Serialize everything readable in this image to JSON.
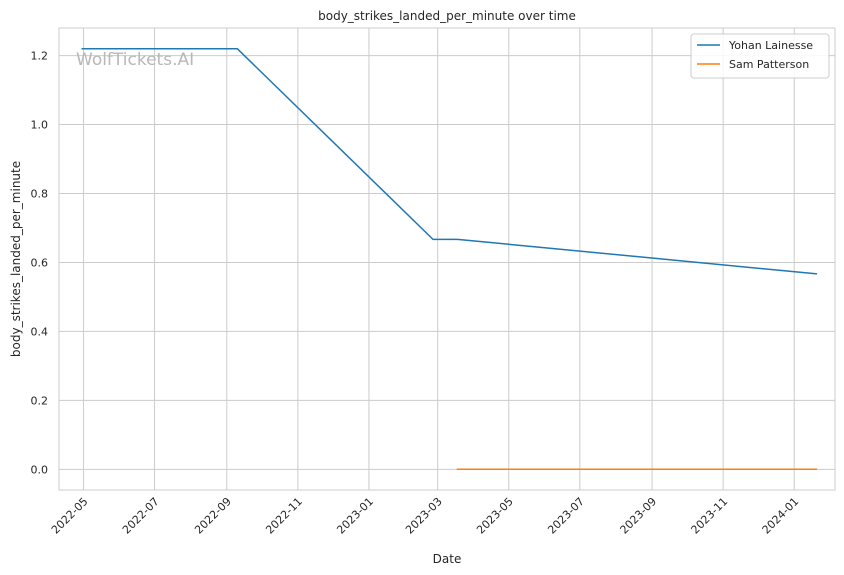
{
  "chart_data": {
    "type": "line",
    "title": "body_strikes_landed_per_minute over time",
    "xlabel": "Date",
    "ylabel": "body_strikes_landed_per_minute",
    "watermark": "WolfTickets.AI",
    "x_ticks": [
      "2022-05",
      "2022-07",
      "2022-09",
      "2022-11",
      "2023-01",
      "2023-03",
      "2023-05",
      "2023-07",
      "2023-09",
      "2023-11",
      "2024-01"
    ],
    "y_ticks": [
      "0.0",
      "0.2",
      "0.4",
      "0.6",
      "0.8",
      "1.0",
      "1.2"
    ],
    "xlim": [
      "2022-04-10",
      "2024-02-05"
    ],
    "ylim": [
      -0.06,
      1.28
    ],
    "grid": true,
    "legend_position": "top-right",
    "series": [
      {
        "name": "Yohan Lainesse",
        "color": "#1f77b4",
        "points": [
          {
            "x": "2022-04-30",
            "y": 1.22
          },
          {
            "x": "2022-09-10",
            "y": 1.22
          },
          {
            "x": "2023-02-25",
            "y": 0.667
          },
          {
            "x": "2023-03-18",
            "y": 0.667
          },
          {
            "x": "2024-01-20",
            "y": 0.567
          }
        ]
      },
      {
        "name": "Sam Patterson",
        "color": "#ff7f0e",
        "points": [
          {
            "x": "2023-03-18",
            "y": 0.0
          },
          {
            "x": "2024-01-20",
            "y": 0.0
          }
        ]
      }
    ]
  }
}
